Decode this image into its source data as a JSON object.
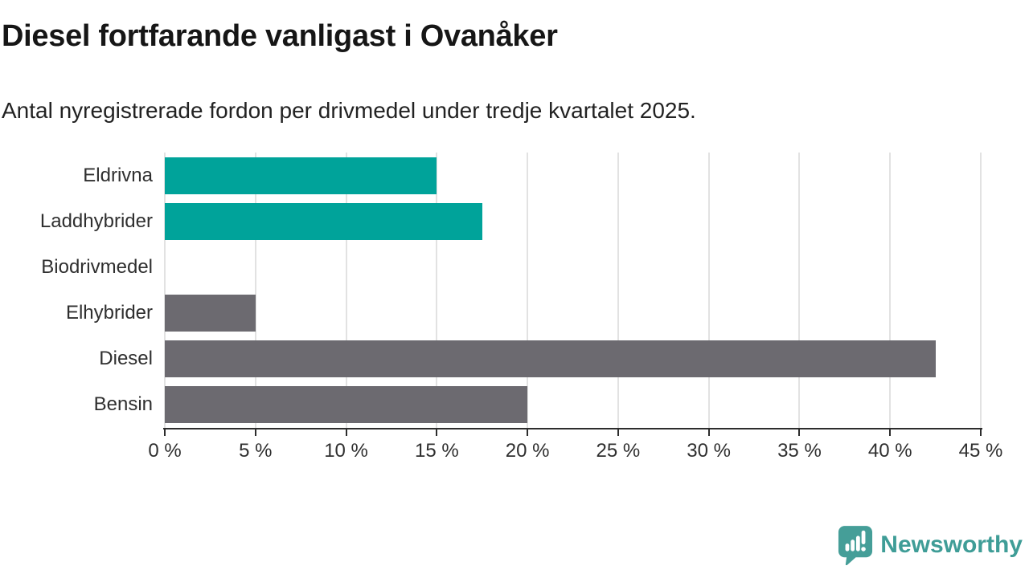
{
  "title": "Diesel fortfarande vanligast i Ovanåker",
  "subtitle": "Antal nyregistrerade fordon per drivmedel under tredje kvartalet 2025.",
  "chart_data": {
    "type": "bar",
    "orientation": "horizontal",
    "title": "Diesel fortfarande vanligast i Ovanåker",
    "subtitle": "Antal nyregistrerade fordon per drivmedel under tredje kvartalet 2025.",
    "categories": [
      "Eldrivna",
      "Laddhybrider",
      "Biodrivmedel",
      "Elhybrider",
      "Diesel",
      "Bensin"
    ],
    "values": [
      15,
      17.5,
      0,
      5,
      42.5,
      20
    ],
    "unit": "%",
    "bar_colors": [
      "#00a39a",
      "#00a39a",
      "#6c6a70",
      "#6c6a70",
      "#6c6a70",
      "#6c6a70"
    ],
    "xlim": [
      0,
      45
    ],
    "x_ticks": [
      0,
      5,
      10,
      15,
      20,
      25,
      30,
      35,
      40,
      45
    ],
    "x_tick_labels": [
      "0 %",
      "5 %",
      "10 %",
      "15 %",
      "20 %",
      "25 %",
      "30 %",
      "35 %",
      "40 %",
      "45 %"
    ],
    "grid": "vertical-gridlines-on",
    "legend": "none",
    "xlabel": "",
    "ylabel": ""
  },
  "branding": {
    "logo_text": "Newsworthy",
    "logo_icon": "bar-chart-speech-bubble",
    "logo_color": "#3f9d97"
  },
  "colors": {
    "teal": "#00a39a",
    "gray": "#6c6a70",
    "gridline": "#e2e2e2",
    "axis": "#2d2d2d",
    "title_text": "#161616",
    "label_text": "#2f2f2f"
  }
}
